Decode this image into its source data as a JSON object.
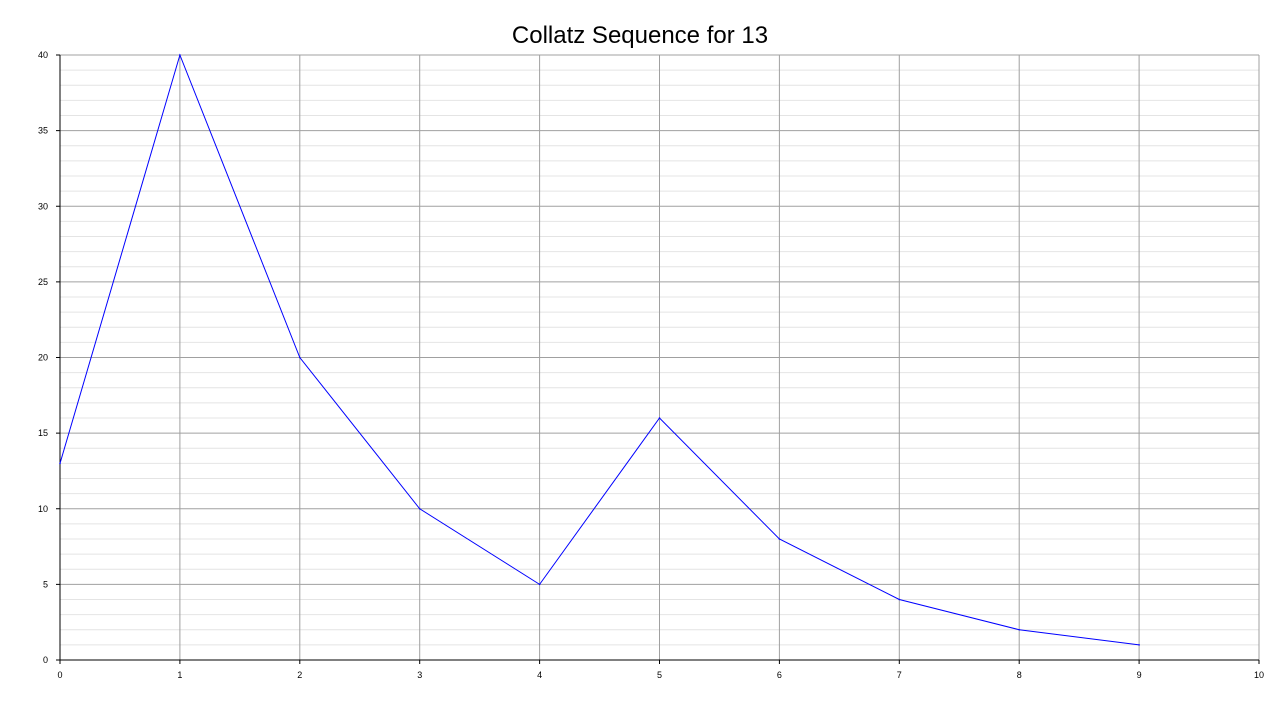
{
  "chart_data": {
    "type": "line",
    "title": "Collatz Sequence for 13",
    "xlabel": "",
    "ylabel": "",
    "x": [
      0,
      1,
      2,
      3,
      4,
      5,
      6,
      7,
      8,
      9
    ],
    "series": [
      {
        "values": [
          13,
          40,
          20,
          10,
          5,
          16,
          8,
          4,
          2,
          1
        ],
        "color": "#0000ff"
      }
    ],
    "xlim": [
      0,
      10
    ],
    "ylim": [
      0,
      40
    ],
    "xticks": [
      0,
      1,
      2,
      3,
      4,
      5,
      6,
      7,
      8,
      9,
      10
    ],
    "yticks": [
      0,
      5,
      10,
      15,
      20,
      25,
      30,
      35,
      40
    ],
    "y_minor_step": 1,
    "grid": true,
    "legend": "none"
  }
}
